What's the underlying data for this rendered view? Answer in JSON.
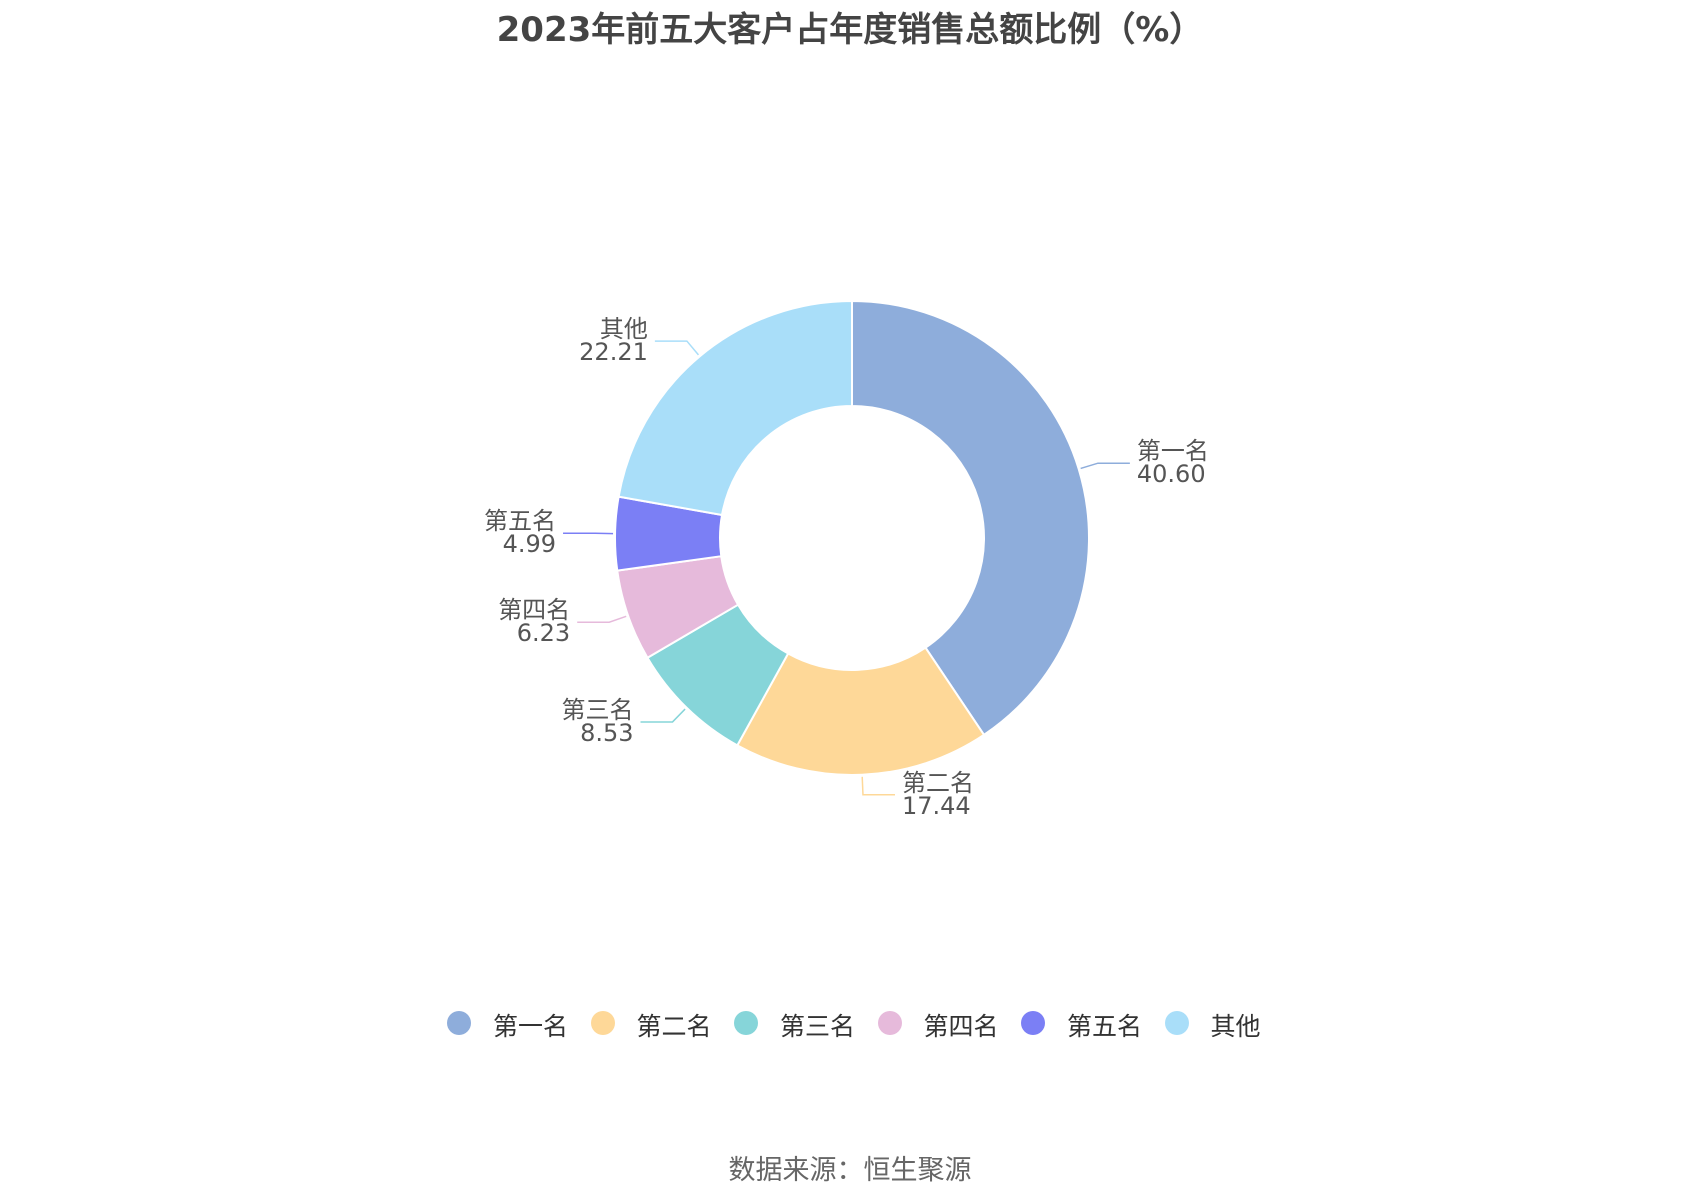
{
  "title": "2023年前五大客户占年度销售总额比例（%）",
  "source": "数据来源：恒生聚源",
  "chart_data": {
    "type": "pie",
    "variant": "donut",
    "title": "2023年前五大客户占年度销售总额比例（%）",
    "legend_position": "bottom",
    "series": [
      {
        "slices": [
          {
            "name": "第一名",
            "value": 40.6,
            "label": "40.60",
            "color": "#8EADDB"
          },
          {
            "name": "第二名",
            "value": 17.44,
            "label": "17.44",
            "color": "#FED898"
          },
          {
            "name": "第三名",
            "value": 8.53,
            "label": "8.53",
            "color": "#86D5D9"
          },
          {
            "name": "第四名",
            "value": 6.23,
            "label": "6.23",
            "color": "#E6BADB"
          },
          {
            "name": "第五名",
            "value": 4.99,
            "label": "4.99",
            "color": "#7B7FF5"
          },
          {
            "name": "其他",
            "value": 22.21,
            "label": "22.21",
            "color": "#A9DEF9"
          }
        ]
      }
    ]
  }
}
